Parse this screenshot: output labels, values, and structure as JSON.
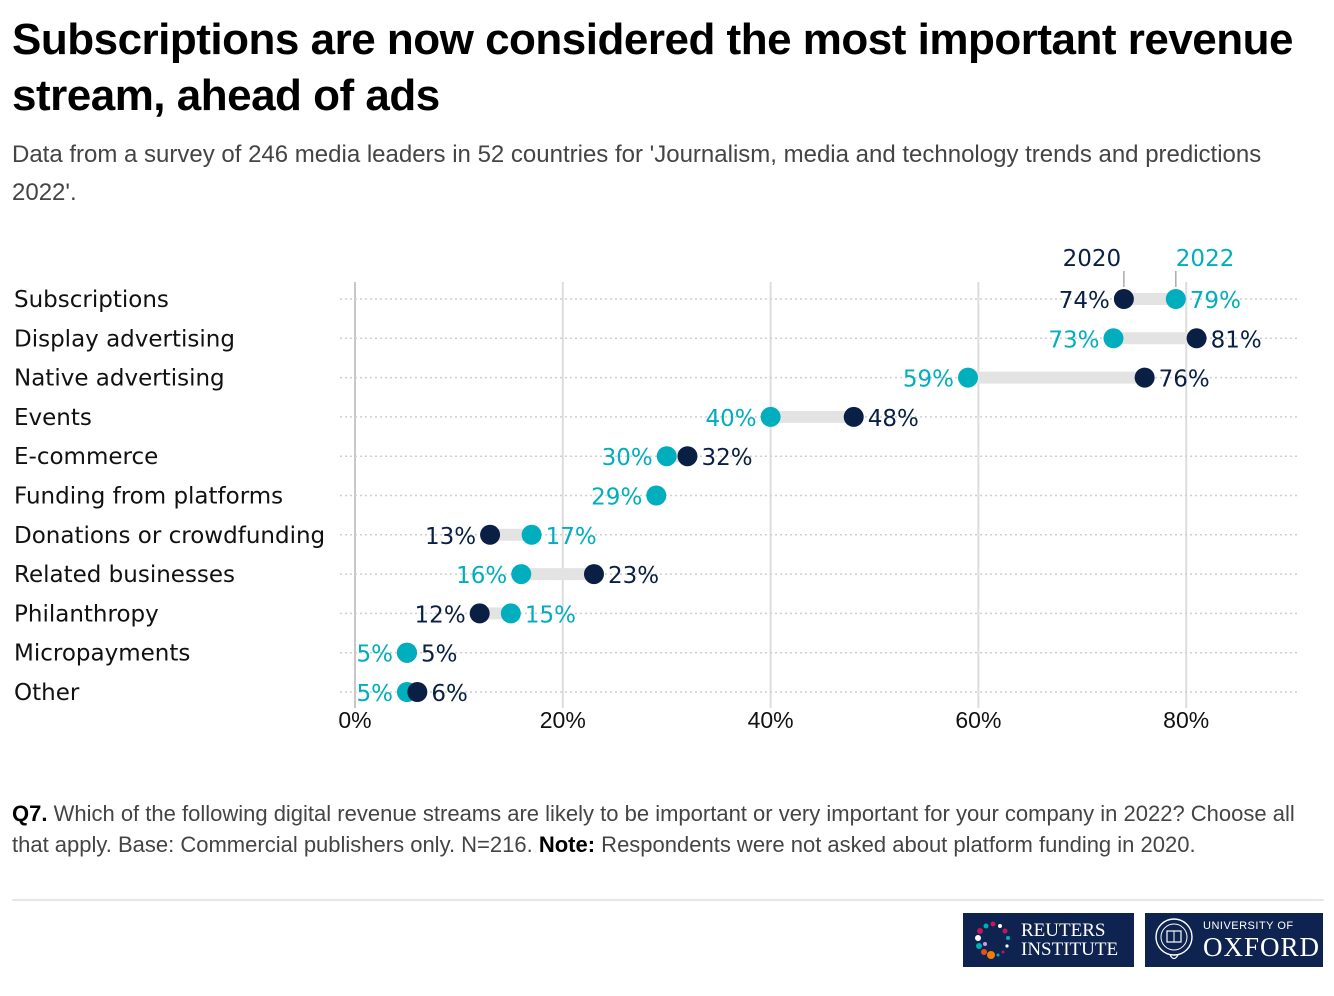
{
  "header": {
    "title": "Subscriptions are now considered the most important revenue stream, ahead of ads",
    "subtitle": "Data from a survey of 246 media leaders in 52 countries for 'Journalism, media and technology trends and predictions 2022'."
  },
  "colors": {
    "series_2020": "#0a1f44",
    "series_2022": "#00aebd",
    "connector": "#e3e3e3",
    "gridline": "#dddddd",
    "text": "#111111"
  },
  "chart_data": {
    "type": "dumbbell",
    "title": "Subscriptions are now considered the most important revenue stream, ahead of ads",
    "xlabel": "",
    "ylabel": "",
    "xlim": [
      0,
      90
    ],
    "x_ticks": [
      0,
      20,
      40,
      60,
      80
    ],
    "x_tick_labels": [
      "0%",
      "20%",
      "40%",
      "60%",
      "80%"
    ],
    "grid": true,
    "legend_position": "top-right",
    "categories": [
      "Subscriptions",
      "Display advertising",
      "Native advertising",
      "Events",
      "E-commerce",
      "Funding from platforms",
      "Donations or crowdfunding",
      "Related businesses",
      "Philanthropy",
      "Micropayments",
      "Other"
    ],
    "series": [
      {
        "name": "2020",
        "values": [
          74,
          81,
          76,
          48,
          32,
          null,
          13,
          23,
          12,
          5,
          6
        ]
      },
      {
        "name": "2022",
        "values": [
          79,
          73,
          59,
          40,
          30,
          29,
          17,
          16,
          15,
          5,
          5
        ]
      }
    ]
  },
  "footer": {
    "q_label": "Q7.",
    "question": " Which of the following digital revenue streams are likely to be important or very important for your company in 2022? Choose all that apply. Base: Commercial publishers only. N=216. ",
    "note_label": "Note:",
    "note": " Respondents were not asked about platform funding in 2020."
  },
  "logos": {
    "reuters_line1": "REUTERS",
    "reuters_line2": "INSTITUTE",
    "oxford_line1": "UNIVERSITY OF",
    "oxford_line2": "OXFORD"
  }
}
